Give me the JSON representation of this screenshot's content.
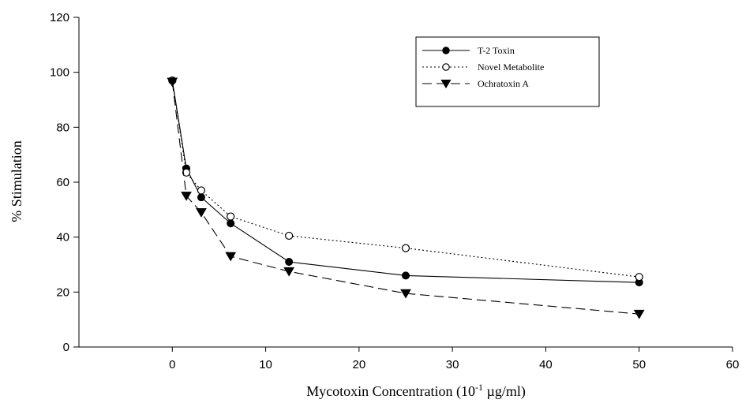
{
  "chart_data": {
    "type": "line",
    "title": "",
    "xlabel": "Mycotoxin Concentration (10",
    "xlabel_superscript": "-1",
    "xlabel_suffix": " µg/ml)",
    "ylabel": "% Stimulation",
    "xlim": [
      -10,
      60
    ],
    "ylim": [
      0,
      120
    ],
    "x_ticks": [
      0,
      10,
      20,
      30,
      40,
      50,
      60
    ],
    "y_ticks": [
      0,
      20,
      40,
      60,
      80,
      100,
      120
    ],
    "grid": false,
    "legend_position": "top-right",
    "series": [
      {
        "name": "T-2 Toxin",
        "marker": "filled-circle",
        "line_style": "solid",
        "x": [
          0,
          1.5,
          3.1,
          6.25,
          12.5,
          25,
          50
        ],
        "y": [
          97,
          65,
          54.5,
          45,
          31,
          26,
          23.5
        ]
      },
      {
        "name": "Novel Metabolite",
        "marker": "open-circle",
        "line_style": "dotted",
        "x": [
          0,
          1.5,
          3.1,
          6.25,
          12.5,
          25,
          50
        ],
        "y": [
          97,
          63.5,
          57,
          47.5,
          40.5,
          36,
          25.5
        ]
      },
      {
        "name": "Ochratoxin A",
        "marker": "filled-triangle-down",
        "line_style": "dashed",
        "x": [
          0,
          1.5,
          3.1,
          6.25,
          12.5,
          25,
          50
        ],
        "y": [
          96.5,
          55,
          49,
          33,
          27.5,
          19.5,
          12
        ]
      }
    ],
    "colors": {
      "axis": "#000000",
      "series": "#000000",
      "background": "#ffffff"
    }
  }
}
